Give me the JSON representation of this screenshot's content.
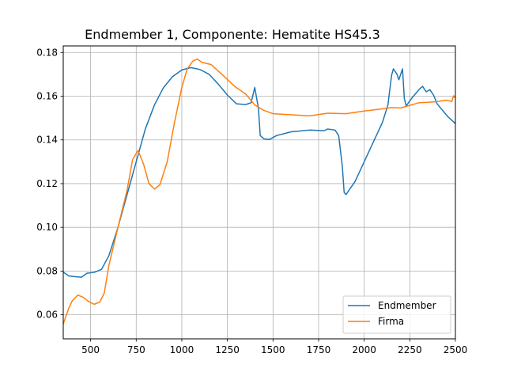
{
  "chart_data": {
    "type": "line",
    "title": "Endmember 1, Componente: Hematite HS45.3",
    "xlabel": "",
    "ylabel": "",
    "xlim": [
      350,
      2500
    ],
    "ylim": [
      0.049,
      0.183
    ],
    "xticks": [
      500,
      750,
      1000,
      1250,
      1500,
      1750,
      2000,
      2250,
      2500
    ],
    "yticks": [
      0.06,
      0.08,
      0.1,
      0.12,
      0.14,
      0.16,
      0.18
    ],
    "ytick_labels": [
      "0.06",
      "0.08",
      "0.10",
      "0.12",
      "0.14",
      "0.16",
      "0.18"
    ],
    "grid": true,
    "legend_position": "lower-right",
    "series": [
      {
        "name": "Endmember",
        "color": "#1f77b4",
        "points": [
          [
            350,
            0.0795
          ],
          [
            380,
            0.0778
          ],
          [
            420,
            0.0774
          ],
          [
            450,
            0.0772
          ],
          [
            480,
            0.079
          ],
          [
            520,
            0.0794
          ],
          [
            560,
            0.0808
          ],
          [
            600,
            0.087
          ],
          [
            650,
            0.1
          ],
          [
            700,
            0.115
          ],
          [
            750,
            0.13
          ],
          [
            800,
            0.145
          ],
          [
            850,
            0.156
          ],
          [
            900,
            0.164
          ],
          [
            950,
            0.169
          ],
          [
            1000,
            0.172
          ],
          [
            1050,
            0.1731
          ],
          [
            1100,
            0.1722
          ],
          [
            1150,
            0.17
          ],
          [
            1200,
            0.1655
          ],
          [
            1250,
            0.1605
          ],
          [
            1300,
            0.1565
          ],
          [
            1350,
            0.1562
          ],
          [
            1380,
            0.157
          ],
          [
            1400,
            0.164
          ],
          [
            1420,
            0.1545
          ],
          [
            1430,
            0.142
          ],
          [
            1450,
            0.1405
          ],
          [
            1480,
            0.1402
          ],
          [
            1520,
            0.142
          ],
          [
            1600,
            0.1437
          ],
          [
            1700,
            0.1445
          ],
          [
            1780,
            0.1442
          ],
          [
            1800,
            0.145
          ],
          [
            1840,
            0.1445
          ],
          [
            1860,
            0.142
          ],
          [
            1880,
            0.128
          ],
          [
            1890,
            0.116
          ],
          [
            1900,
            0.115
          ],
          [
            1950,
            0.121
          ],
          [
            2000,
            0.13
          ],
          [
            2050,
            0.139
          ],
          [
            2100,
            0.148
          ],
          [
            2130,
            0.156
          ],
          [
            2150,
            0.1695
          ],
          [
            2160,
            0.1725
          ],
          [
            2180,
            0.17
          ],
          [
            2190,
            0.1675
          ],
          [
            2200,
            0.17
          ],
          [
            2210,
            0.1725
          ],
          [
            2220,
            0.159
          ],
          [
            2230,
            0.1555
          ],
          [
            2260,
            0.159
          ],
          [
            2300,
            0.163
          ],
          [
            2320,
            0.1645
          ],
          [
            2340,
            0.162
          ],
          [
            2360,
            0.163
          ],
          [
            2380,
            0.1605
          ],
          [
            2400,
            0.1565
          ],
          [
            2430,
            0.1535
          ],
          [
            2460,
            0.1505
          ],
          [
            2500,
            0.1475
          ]
        ]
      },
      {
        "name": "Firma",
        "color": "#ff7f0e",
        "points": [
          [
            350,
            0.0558
          ],
          [
            380,
            0.063
          ],
          [
            400,
            0.0665
          ],
          [
            430,
            0.069
          ],
          [
            460,
            0.068
          ],
          [
            490,
            0.066
          ],
          [
            520,
            0.0648
          ],
          [
            550,
            0.0658
          ],
          [
            575,
            0.07
          ],
          [
            600,
            0.0825
          ],
          [
            650,
            0.1
          ],
          [
            700,
            0.117
          ],
          [
            730,
            0.131
          ],
          [
            760,
            0.1352
          ],
          [
            790,
            0.129
          ],
          [
            820,
            0.12
          ],
          [
            850,
            0.1175
          ],
          [
            880,
            0.1195
          ],
          [
            920,
            0.13
          ],
          [
            960,
            0.148
          ],
          [
            1000,
            0.164
          ],
          [
            1030,
            0.1725
          ],
          [
            1060,
            0.176
          ],
          [
            1085,
            0.177
          ],
          [
            1110,
            0.1755
          ],
          [
            1160,
            0.1745
          ],
          [
            1220,
            0.17
          ],
          [
            1290,
            0.1645
          ],
          [
            1350,
            0.161
          ],
          [
            1400,
            0.156
          ],
          [
            1450,
            0.1535
          ],
          [
            1500,
            0.152
          ],
          [
            1600,
            0.1515
          ],
          [
            1700,
            0.151
          ],
          [
            1800,
            0.1522
          ],
          [
            1900,
            0.152
          ],
          [
            2000,
            0.1532
          ],
          [
            2100,
            0.1542
          ],
          [
            2150,
            0.1548
          ],
          [
            2200,
            0.1546
          ],
          [
            2250,
            0.1558
          ],
          [
            2300,
            0.157
          ],
          [
            2350,
            0.1572
          ],
          [
            2400,
            0.1575
          ],
          [
            2450,
            0.1582
          ],
          [
            2480,
            0.1576
          ],
          [
            2490,
            0.1602
          ],
          [
            2500,
            0.1592
          ]
        ]
      }
    ]
  }
}
